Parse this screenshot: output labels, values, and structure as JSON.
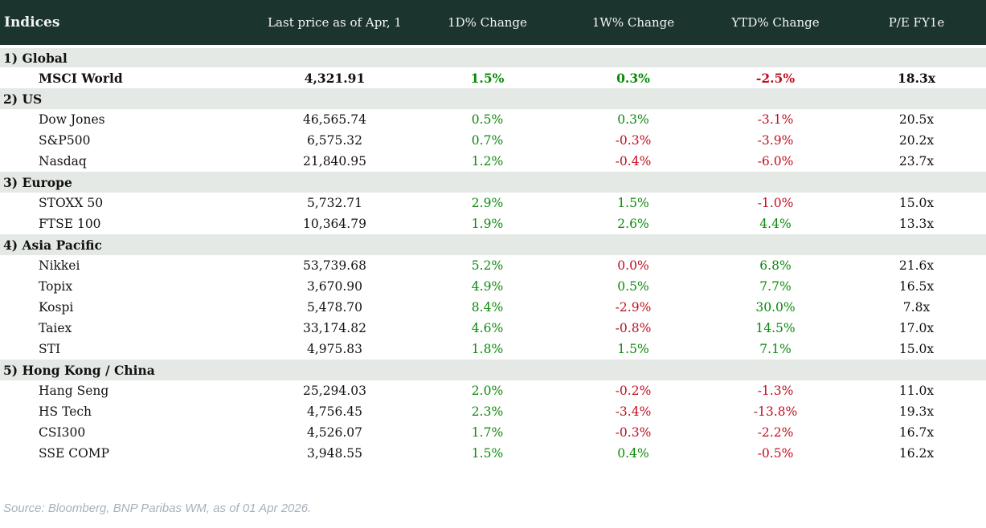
{
  "header": {
    "col_indices": "Indices",
    "col_price": "Last price as of Apr, 1",
    "col_1d": "1D% Change",
    "col_1w": "1W% Change",
    "col_ytd": "YTD% Change",
    "col_pe": "P/E FY1e"
  },
  "sections": [
    {
      "label": "1) Global",
      "rows": [
        {
          "name": "MSCI World",
          "price": "4,321.91",
          "d1": "1.5%",
          "d1c": "pos",
          "w1": "0.3%",
          "w1c": "pos",
          "ytd": "-2.5%",
          "ytdc": "neg",
          "pe": "18.3x",
          "bold": true
        }
      ]
    },
    {
      "label": "2) US",
      "rows": [
        {
          "name": "Dow Jones",
          "price": "46,565.74",
          "d1": "0.5%",
          "d1c": "pos",
          "w1": "0.3%",
          "w1c": "pos",
          "ytd": "-3.1%",
          "ytdc": "neg",
          "pe": "20.5x",
          "bold": false
        },
        {
          "name": "S&P500",
          "price": "6,575.32",
          "d1": "0.7%",
          "d1c": "pos",
          "w1": "-0.3%",
          "w1c": "neg",
          "ytd": "-3.9%",
          "ytdc": "neg",
          "pe": "20.2x",
          "bold": false
        },
        {
          "name": "Nasdaq",
          "price": "21,840.95",
          "d1": "1.2%",
          "d1c": "pos",
          "w1": "-0.4%",
          "w1c": "neg",
          "ytd": "-6.0%",
          "ytdc": "neg",
          "pe": "23.7x",
          "bold": false
        }
      ]
    },
    {
      "label": "3) Europe",
      "rows": [
        {
          "name": "STOXX 50",
          "price": "5,732.71",
          "d1": "2.9%",
          "d1c": "pos",
          "w1": "1.5%",
          "w1c": "pos",
          "ytd": "-1.0%",
          "ytdc": "neg",
          "pe": "15.0x",
          "bold": false
        },
        {
          "name": "FTSE 100",
          "price": "10,364.79",
          "d1": "1.9%",
          "d1c": "pos",
          "w1": "2.6%",
          "w1c": "pos",
          "ytd": "4.4%",
          "ytdc": "pos",
          "pe": "13.3x",
          "bold": false
        }
      ]
    },
    {
      "label": "4) Asia Pacific",
      "rows": [
        {
          "name": "Nikkei",
          "price": "53,739.68",
          "d1": "5.2%",
          "d1c": "pos",
          "w1": "0.0%",
          "w1c": "neg",
          "ytd": "6.8%",
          "ytdc": "pos",
          "pe": "21.6x",
          "bold": false
        },
        {
          "name": "Topix",
          "price": "3,670.90",
          "d1": "4.9%",
          "d1c": "pos",
          "w1": "0.5%",
          "w1c": "pos",
          "ytd": "7.7%",
          "ytdc": "pos",
          "pe": "16.5x",
          "bold": false
        },
        {
          "name": "Kospi",
          "price": "5,478.70",
          "d1": "8.4%",
          "d1c": "pos",
          "w1": "-2.9%",
          "w1c": "neg",
          "ytd": "30.0%",
          "ytdc": "pos",
          "pe": "7.8x",
          "bold": false
        },
        {
          "name": "Taiex",
          "price": "33,174.82",
          "d1": "4.6%",
          "d1c": "pos",
          "w1": "-0.8%",
          "w1c": "neg",
          "ytd": "14.5%",
          "ytdc": "pos",
          "pe": "17.0x",
          "bold": false
        },
        {
          "name": "STI",
          "price": "4,975.83",
          "d1": "1.8%",
          "d1c": "pos",
          "w1": "1.5%",
          "w1c": "pos",
          "ytd": "7.1%",
          "ytdc": "pos",
          "pe": "15.0x",
          "bold": false
        }
      ]
    },
    {
      "label": "5) Hong Kong / China",
      "rows": [
        {
          "name": "Hang Seng",
          "price": "25,294.03",
          "d1": "2.0%",
          "d1c": "pos",
          "w1": "-0.2%",
          "w1c": "neg",
          "ytd": "-1.3%",
          "ytdc": "neg",
          "pe": "11.0x",
          "bold": false
        },
        {
          "name": "HS Tech",
          "price": "4,756.45",
          "d1": "2.3%",
          "d1c": "pos",
          "w1": "-3.4%",
          "w1c": "neg",
          "ytd": "-13.8%",
          "ytdc": "neg",
          "pe": "19.3x",
          "bold": false
        },
        {
          "name": "CSI300",
          "price": "4,526.07",
          "d1": "1.7%",
          "d1c": "pos",
          "w1": "-0.3%",
          "w1c": "neg",
          "ytd": "-2.2%",
          "ytdc": "neg",
          "pe": "16.7x",
          "bold": false
        },
        {
          "name": "SSE COMP",
          "price": "3,948.55",
          "d1": "1.5%",
          "d1c": "pos",
          "w1": "0.4%",
          "w1c": "pos",
          "ytd": "-0.5%",
          "ytdc": "neg",
          "pe": "16.2x",
          "bold": false
        }
      ]
    }
  ],
  "footer": {
    "source": "Source: Bloomberg, BNP Paribas WM, as of 01 Apr 2026."
  },
  "colors": {
    "positive": "#0a8a0a",
    "negative": "#c00d1e",
    "header_bg": "#1c342e",
    "section_bg": "#e4e9e5"
  }
}
